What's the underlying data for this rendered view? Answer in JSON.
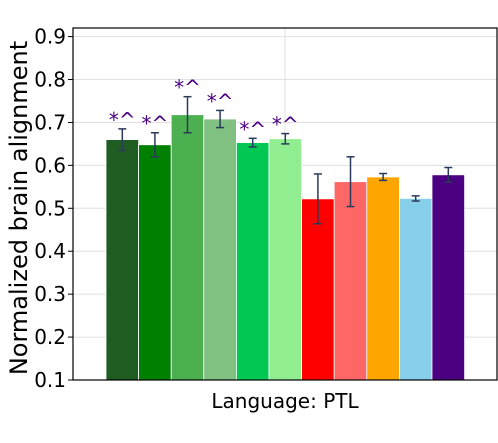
{
  "chart_data": {
    "type": "bar",
    "title": "",
    "xlabel": "Language: PTL",
    "ylabel": "Normalized brain alignment",
    "ylim": [
      0.1,
      0.92
    ],
    "yticks": [
      0.1,
      0.2,
      0.3,
      0.4,
      0.5,
      0.6,
      0.7,
      0.8,
      0.9
    ],
    "ytick_labels": [
      "0.1",
      "0.2",
      "0.3",
      "0.4",
      "0.5",
      "0.6",
      "0.7",
      "0.8",
      "0.9"
    ],
    "grid": true,
    "legend": false,
    "bars": [
      {
        "value": 0.66,
        "err": 0.025,
        "color": "#1e5c22",
        "annotation": "*^"
      },
      {
        "value": 0.648,
        "err": 0.028,
        "color": "#008000",
        "annotation": "*^"
      },
      {
        "value": 0.718,
        "err": 0.042,
        "color": "#4caf50",
        "annotation": "*^"
      },
      {
        "value": 0.708,
        "err": 0.02,
        "color": "#80c080",
        "annotation": "*^"
      },
      {
        "value": 0.653,
        "err": 0.01,
        "color": "#00c853",
        "annotation": "*^"
      },
      {
        "value": 0.662,
        "err": 0.012,
        "color": "#90ee90",
        "annotation": "*^"
      },
      {
        "value": 0.522,
        "err": 0.058,
        "color": "#ff0000",
        "annotation": ""
      },
      {
        "value": 0.562,
        "err": 0.058,
        "color": "#ff6666",
        "annotation": ""
      },
      {
        "value": 0.573,
        "err": 0.008,
        "color": "#ffa500",
        "annotation": ""
      },
      {
        "value": 0.523,
        "err": 0.006,
        "color": "#87ceeb",
        "annotation": ""
      },
      {
        "value": 0.578,
        "err": 0.017,
        "color": "#4b0082",
        "annotation": ""
      }
    ]
  }
}
